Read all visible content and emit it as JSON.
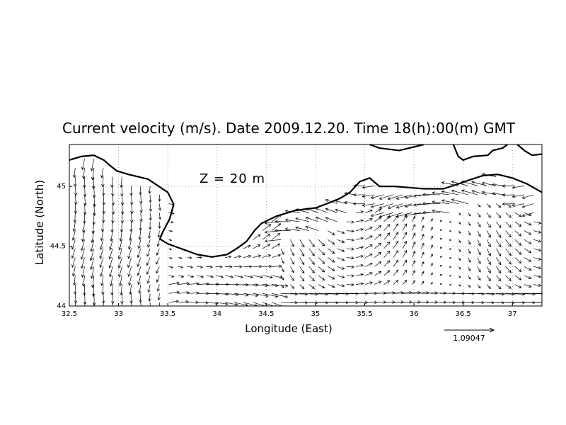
{
  "chart_data": {
    "type": "vector",
    "title": "Current velocity (m/s). Date 2009.12.20. Time 18(h):00(m) GMT",
    "xlabel": "Longitude (East)",
    "ylabel": "Latitude (North)",
    "xlim": [
      32.5,
      37.3
    ],
    "ylim": [
      44.0,
      45.35
    ],
    "x_ticks": [
      "32.5",
      "33",
      "33.5",
      "34",
      "34.5",
      "35",
      "35.5",
      "36",
      "36.5",
      "37"
    ],
    "y_ticks": [
      "44",
      "44.5",
      "45"
    ],
    "grid": true,
    "annotation": "Z = 20 m",
    "reference_vector_label": "1.09047",
    "reference_vector_value": 1.09047,
    "coastline": [
      [
        32.5,
        45.22
      ],
      [
        32.62,
        45.25
      ],
      [
        32.75,
        45.26
      ],
      [
        32.85,
        45.22
      ],
      [
        32.92,
        45.17
      ],
      [
        32.98,
        45.13
      ],
      [
        33.1,
        45.1
      ],
      [
        33.3,
        45.06
      ],
      [
        33.5,
        44.95
      ],
      [
        33.56,
        44.85
      ],
      [
        33.52,
        44.73
      ],
      [
        33.45,
        44.62
      ],
      [
        33.42,
        44.56
      ],
      [
        33.5,
        44.52
      ],
      [
        33.6,
        44.49
      ],
      [
        33.7,
        44.46
      ],
      [
        33.8,
        44.43
      ],
      [
        33.95,
        44.41
      ],
      [
        34.1,
        44.43
      ],
      [
        34.2,
        44.48
      ],
      [
        34.3,
        44.54
      ],
      [
        34.38,
        44.63
      ],
      [
        34.45,
        44.69
      ],
      [
        34.6,
        44.75
      ],
      [
        34.8,
        44.8
      ],
      [
        35.0,
        44.82
      ],
      [
        35.1,
        44.85
      ],
      [
        35.25,
        44.9
      ],
      [
        35.35,
        44.95
      ],
      [
        35.45,
        45.04
      ],
      [
        35.55,
        45.07
      ],
      [
        35.65,
        45.0
      ],
      [
        35.8,
        45.0
      ],
      [
        35.95,
        44.99
      ],
      [
        36.1,
        44.98
      ],
      [
        36.3,
        44.98
      ],
      [
        36.45,
        45.02
      ],
      [
        36.55,
        45.05
      ],
      [
        36.7,
        45.09
      ],
      [
        36.85,
        45.1
      ],
      [
        37.0,
        45.07
      ],
      [
        37.15,
        45.02
      ],
      [
        37.3,
        44.95
      ]
    ],
    "land_north_coast": [
      [
        35.55,
        45.35
      ],
      [
        35.65,
        45.32
      ],
      [
        35.85,
        45.3
      ],
      [
        36.0,
        45.33
      ],
      [
        36.1,
        45.35
      ]
    ],
    "land_kerch": [
      [
        36.4,
        45.35
      ],
      [
        36.45,
        45.25
      ],
      [
        36.5,
        45.22
      ],
      [
        36.6,
        45.25
      ],
      [
        36.75,
        45.26
      ],
      [
        36.8,
        45.3
      ],
      [
        36.9,
        45.32
      ],
      [
        36.95,
        45.35
      ]
    ],
    "land_taman": [
      [
        37.05,
        45.35
      ],
      [
        37.12,
        45.3
      ],
      [
        37.2,
        45.26
      ],
      [
        37.3,
        45.27
      ]
    ]
  }
}
